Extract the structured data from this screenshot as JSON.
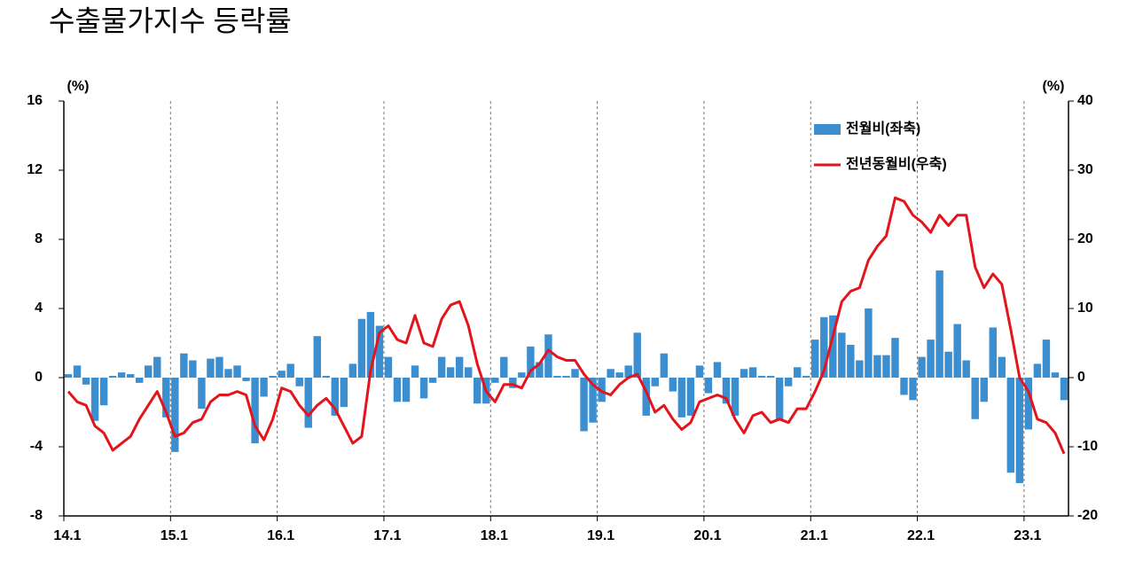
{
  "chart_data": {
    "type": "combo",
    "title": "수출물가지수 등락률",
    "y_label": "(%)",
    "y2_label": "(%)",
    "categories": [
      "14.1",
      null,
      null,
      null,
      null,
      null,
      null,
      null,
      null,
      null,
      null,
      null,
      "15.1",
      null,
      null,
      null,
      null,
      null,
      null,
      null,
      null,
      null,
      null,
      null,
      "16.1",
      null,
      null,
      null,
      null,
      null,
      null,
      null,
      null,
      null,
      null,
      null,
      "17.1",
      null,
      null,
      null,
      null,
      null,
      null,
      null,
      null,
      null,
      null,
      null,
      "18.1",
      null,
      null,
      null,
      null,
      null,
      null,
      null,
      null,
      null,
      null,
      null,
      "19.1",
      null,
      null,
      null,
      null,
      null,
      null,
      null,
      null,
      null,
      null,
      null,
      "20.1",
      null,
      null,
      null,
      null,
      null,
      null,
      null,
      null,
      null,
      null,
      null,
      "21.1",
      null,
      null,
      null,
      null,
      null,
      null,
      null,
      null,
      null,
      null,
      null,
      "22.1",
      null,
      null,
      null,
      null,
      null,
      null,
      null,
      null,
      null,
      null,
      null,
      "23.1",
      null,
      null,
      null,
      null
    ],
    "series": [
      {
        "name": "전월비(좌축)",
        "type": "bar",
        "axis": "y",
        "color": "#3b8ed0",
        "values": [
          0.2,
          0.7,
          -0.4,
          -2.5,
          -1.6,
          0.1,
          0.3,
          0.2,
          -0.3,
          0.7,
          1.2,
          -2.3,
          -4.3,
          1.4,
          1.0,
          -1.8,
          1.1,
          1.2,
          0.5,
          0.7,
          -0.2,
          -3.8,
          -1.1,
          0.1,
          0.4,
          0.8,
          -0.5,
          -2.9,
          2.4,
          0.1,
          -2.2,
          -1.7,
          0.8,
          3.4,
          3.8,
          3.0,
          1.2,
          -1.4,
          -1.4,
          0.7,
          -1.2,
          -0.3,
          1.2,
          0.6,
          1.2,
          0.6,
          -1.5,
          -1.5,
          -0.3,
          1.2,
          -0.6,
          0.3,
          1.8,
          0.9,
          2.5,
          0.1,
          0.1,
          0.5,
          -3.1,
          -2.6,
          -1.4,
          0.5,
          0.3,
          0.7,
          2.6,
          -2.2,
          -0.5,
          1.4,
          -0.8,
          -2.3,
          -2.2,
          0.7,
          -0.9,
          0.9,
          -1.5,
          -2.2,
          0.5,
          0.6,
          0.1,
          0.1,
          -2.4,
          -0.5,
          0.6,
          0.1,
          2.2,
          3.5,
          3.6,
          2.6,
          1.9,
          1.0,
          4.0,
          1.3,
          1.3,
          2.3,
          -1.0,
          -1.3,
          1.2,
          2.2,
          6.2,
          1.5,
          3.1,
          1.0,
          -2.4,
          -1.4,
          2.9,
          1.2,
          -5.5,
          -6.1,
          -3.0,
          0.8,
          2.2,
          0.3,
          -1.3
        ]
      },
      {
        "name": "전년동월비(우축)",
        "type": "line",
        "axis": "y2",
        "color": "#e3141b",
        "values": [
          -2,
          -3.5,
          -4,
          -7,
          -8,
          -10.5,
          -9.5,
          -8.5,
          -6,
          -4,
          -2,
          -5,
          -8.5,
          -8,
          -6.5,
          -6,
          -3.5,
          -2.5,
          -2.5,
          -2,
          -2.5,
          -7,
          -9,
          -6,
          -1.5,
          -2,
          -4,
          -5.5,
          -4,
          -3,
          -4.5,
          -7,
          -9.5,
          -8.5,
          1,
          6.5,
          7.5,
          5.5,
          5,
          9,
          5,
          4.5,
          8.5,
          10.5,
          11,
          7.5,
          2,
          -2,
          -3.5,
          -1,
          -1,
          -1.5,
          1,
          2,
          4,
          3,
          2.5,
          2.5,
          0.5,
          -1,
          -2,
          -2.5,
          -1,
          0,
          0.5,
          -2,
          -5,
          -4,
          -6,
          -7.5,
          -6.5,
          -3.5,
          -3,
          -2.5,
          -3,
          -6,
          -8,
          -5.5,
          -5,
          -6.5,
          -6,
          -6.5,
          -4.5,
          -4.5,
          -2,
          1,
          6,
          11,
          12.5,
          13,
          17,
          19,
          20.5,
          26,
          25.5,
          23.5,
          22.5,
          21,
          23.5,
          22,
          23.5,
          23.5,
          16,
          13,
          15,
          13.5,
          7,
          0,
          -2,
          -6,
          -6.5,
          -8,
          -11
        ]
      }
    ],
    "ylim": [
      -8,
      16
    ],
    "yticks": [
      -8,
      -4,
      0,
      4,
      8,
      12,
      16
    ],
    "y2lim": [
      -20,
      40
    ],
    "y2ticks": [
      -20,
      -10,
      0,
      10,
      20,
      30,
      40
    ],
    "x_grid": true,
    "legend": "top-right"
  }
}
